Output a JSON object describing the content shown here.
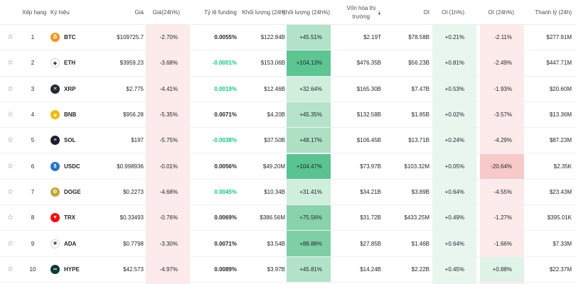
{
  "headers": {
    "rank": "Xếp hạng",
    "symbol": "Ký hiệu",
    "price": "Giá",
    "change": "Giá(24h%)",
    "funding": "Tỷ lệ funding",
    "volume": "Khối lượng (24h)",
    "volume_pct": "Khối lượng (24h%)",
    "mcap_line1": "Vốn hóa thị",
    "mcap_line2": "trường",
    "oi": "OI",
    "oi_1h": "OI (1h%)",
    "oi_24h": "OI (24h%)",
    "liq": "Thanh lý (24h)"
  },
  "rows": [
    {
      "rank": "1",
      "symbol": "BTC",
      "icon": "bitcoin-icon",
      "icon_color": "#f7931a",
      "icon_glyph": "₿",
      "price": "$109725.7",
      "change": "-2.70%",
      "funding": "0.0055%",
      "funding_positive_green": false,
      "volume": "$122.84B",
      "volume_pct": "+45.51%",
      "mcap": "$2.19T",
      "oi": "$78.58B",
      "oi_1h": "+0.21%",
      "oi_24h": "-2.11%",
      "liq": "$277.91M"
    },
    {
      "rank": "2",
      "symbol": "ETH",
      "icon": "ethereum-icon",
      "icon_color": "#ffffff",
      "icon_glyph": "◆",
      "price": "$3959.23",
      "change": "-3.68%",
      "funding": "-0.0001%",
      "funding_positive_green": true,
      "volume": "$153.06B",
      "volume_pct": "+104.13%",
      "mcap": "$476.35B",
      "oi": "$56.23B",
      "oi_1h": "+0.81%",
      "oi_24h": "-2.49%",
      "liq": "$447.71M"
    },
    {
      "rank": "3",
      "symbol": "XRP",
      "icon": "xrp-icon",
      "icon_color": "#23292f",
      "icon_glyph": "✕",
      "price": "$2.775",
      "change": "-4.41%",
      "funding": "0.0019%",
      "funding_positive_green": true,
      "volume": "$12.46B",
      "volume_pct": "+32.64%",
      "mcap": "$165.30B",
      "oi": "$7.47B",
      "oi_1h": "+0.53%",
      "oi_24h": "-1.93%",
      "liq": "$20.60M"
    },
    {
      "rank": "4",
      "symbol": "BNB",
      "icon": "bnb-icon",
      "icon_color": "#f0b90b",
      "icon_glyph": "◈",
      "price": "$956.28",
      "change": "-5.35%",
      "funding": "0.0071%",
      "funding_positive_green": false,
      "volume": "$4.20B",
      "volume_pct": "+45.35%",
      "mcap": "$132.58B",
      "oi": "$1.85B",
      "oi_1h": "+0.02%",
      "oi_24h": "-3.57%",
      "liq": "$13.36M"
    },
    {
      "rank": "5",
      "symbol": "SOL",
      "icon": "solana-icon",
      "icon_color": "#1e1e2e",
      "icon_glyph": "≡",
      "price": "$197",
      "change": "-5.75%",
      "funding": "-0.0038%",
      "funding_positive_green": true,
      "volume": "$37.50B",
      "volume_pct": "+48.17%",
      "mcap": "$106.45B",
      "oi": "$13.71B",
      "oi_1h": "+0.24%",
      "oi_24h": "-4.29%",
      "liq": "$87.23M"
    },
    {
      "rank": "6",
      "symbol": "USDC",
      "icon": "usdc-icon",
      "icon_color": "#2775ca",
      "icon_glyph": "$",
      "price": "$0.998936",
      "change": "-0.01%",
      "funding": "0.0056%",
      "funding_positive_green": false,
      "volume": "$49.20M",
      "volume_pct": "+104.47%",
      "mcap": "$73.97B",
      "oi": "$103.32M",
      "oi_1h": "+0.05%",
      "oi_24h": "-20.64%",
      "liq": "$2.35K"
    },
    {
      "rank": "7",
      "symbol": "DOGE",
      "icon": "dogecoin-icon",
      "icon_color": "#c2a633",
      "icon_glyph": "Ð",
      "price": "$0.2273",
      "change": "-4.68%",
      "funding": "0.0045%",
      "funding_positive_green": true,
      "volume": "$10.34B",
      "volume_pct": "+31.41%",
      "mcap": "$34.21B",
      "oi": "$3.89B",
      "oi_1h": "+0.64%",
      "oi_24h": "-4.55%",
      "liq": "$23.43M"
    },
    {
      "rank": "8",
      "symbol": "TRX",
      "icon": "tron-icon",
      "icon_color": "#ff060a",
      "icon_glyph": "▼",
      "price": "$0.33493",
      "change": "-0.76%",
      "funding": "0.0069%",
      "funding_positive_green": false,
      "volume": "$386.56M",
      "volume_pct": "+75.56%",
      "mcap": "$31.72B",
      "oi": "$433.25M",
      "oi_1h": "+0.49%",
      "oi_24h": "-1.27%",
      "liq": "$395.01K"
    },
    {
      "rank": "9",
      "symbol": "ADA",
      "icon": "cardano-icon",
      "icon_color": "#ffffff",
      "icon_glyph": "✺",
      "price": "$0.7798",
      "change": "-3.30%",
      "funding": "0.0071%",
      "funding_positive_green": false,
      "volume": "$3.54B",
      "volume_pct": "+88.88%",
      "mcap": "$27.85B",
      "oi": "$1.46B",
      "oi_1h": "+0.64%",
      "oi_24h": "-1.66%",
      "liq": "$7.33M"
    },
    {
      "rank": "10",
      "symbol": "HYPE",
      "icon": "hyperliquid-icon",
      "icon_color": "#0d3b33",
      "icon_glyph": "∞",
      "price": "$42.573",
      "change": "-4.97%",
      "funding": "0.0089%",
      "funding_positive_green": false,
      "volume": "$3.97B",
      "volume_pct": "+45.81%",
      "mcap": "$14.24B",
      "oi": "$2.22B",
      "oi_1h": "+0.45%",
      "oi_24h": "+0.88%",
      "liq": "$22.37M"
    }
  ],
  "colors": {
    "change_bg": "#fdeaea",
    "oi1h_bg": "#e8f6ee",
    "oi24h_neg_bg": "#fdeaea",
    "oi24h_pos_bg": "#dff3e7",
    "green_text": "#0ecb81",
    "volume_pct_shades": [
      "#b2e3c8",
      "#5cc592",
      "#cfeedc",
      "#b4e3c9",
      "#aee0c4",
      "#5ac491",
      "#cfeedc",
      "#89d3ac",
      "#7fcfa5",
      "#b2e3c8"
    ],
    "usdc_oi24h_bg": "#f8c9c9"
  }
}
